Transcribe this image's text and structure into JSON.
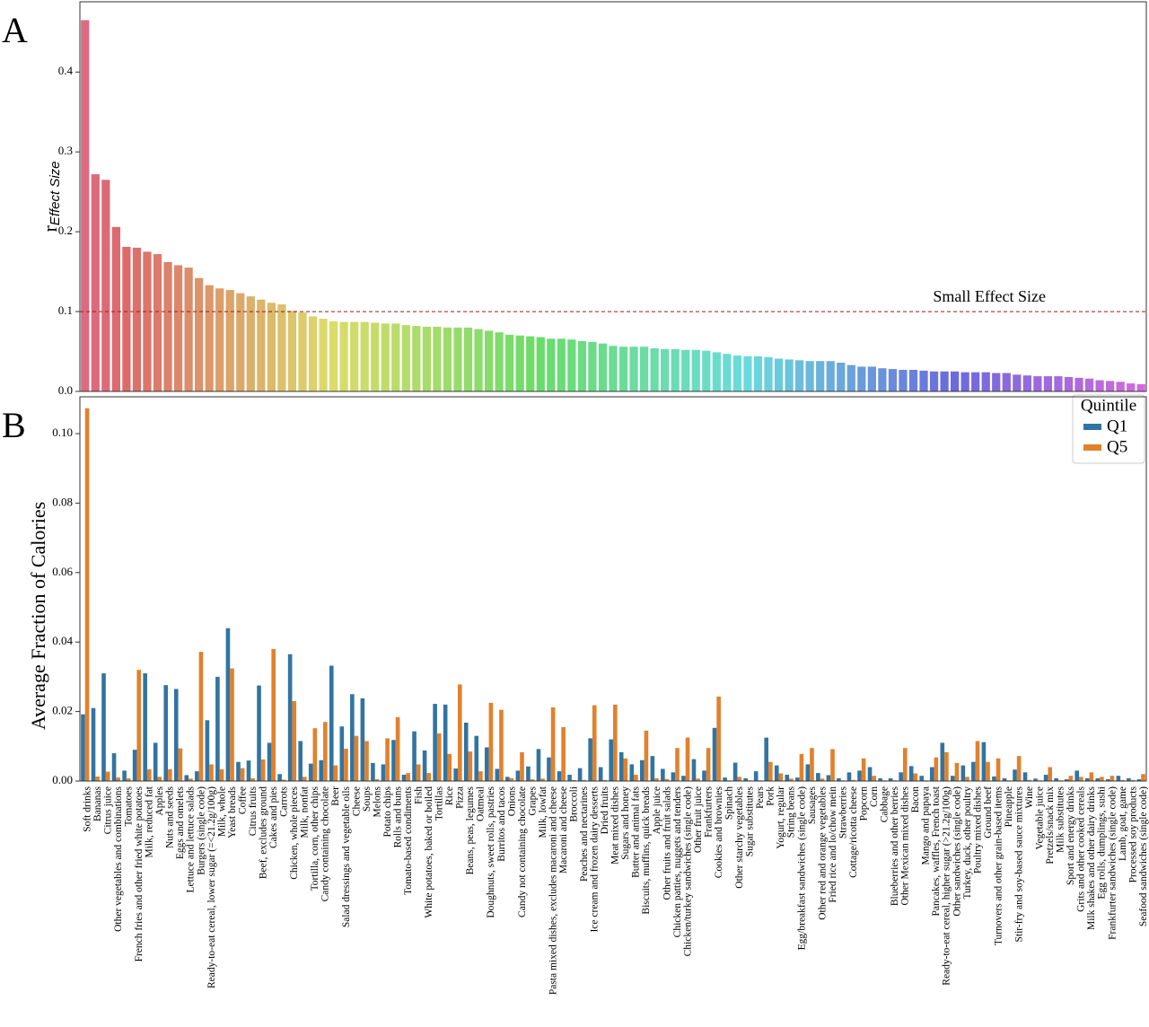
{
  "chart_data": [
    {
      "type": "bar",
      "panel": "A",
      "ylabel": "r",
      "ylabel_subscript": "Effect Size",
      "palette": "husl",
      "ylim": [
        0,
        0.488
      ],
      "yticks": [
        {
          "value": 0,
          "label": "0.0"
        },
        0.1,
        0.2,
        0.3,
        0.4
      ],
      "reference_line": {
        "value": 0.1,
        "label": "Small Effect Size",
        "color": "#a01818"
      },
      "values": [
        0.465,
        0.272,
        0.265,
        0.206,
        0.181,
        0.18,
        0.175,
        0.172,
        0.162,
        0.158,
        0.155,
        0.142,
        0.133,
        0.129,
        0.127,
        0.123,
        0.119,
        0.115,
        0.111,
        0.109,
        0.101,
        0.099,
        0.094,
        0.091,
        0.088,
        0.087,
        0.087,
        0.087,
        0.086,
        0.085,
        0.085,
        0.083,
        0.082,
        0.081,
        0.081,
        0.08,
        0.08,
        0.08,
        0.078,
        0.076,
        0.074,
        0.071,
        0.07,
        0.069,
        0.068,
        0.066,
        0.066,
        0.065,
        0.063,
        0.062,
        0.06,
        0.057,
        0.056,
        0.056,
        0.056,
        0.054,
        0.053,
        0.053,
        0.052,
        0.052,
        0.051,
        0.049,
        0.047,
        0.045,
        0.044,
        0.044,
        0.043,
        0.041,
        0.04,
        0.039,
        0.038,
        0.038,
        0.038,
        0.036,
        0.033,
        0.031,
        0.031,
        0.029,
        0.028,
        0.027,
        0.027,
        0.026,
        0.025,
        0.025,
        0.025,
        0.024,
        0.024,
        0.024,
        0.023,
        0.023,
        0.021,
        0.02,
        0.019,
        0.019,
        0.019,
        0.018,
        0.017,
        0.016,
        0.014,
        0.013,
        0.012,
        0.01,
        0.009
      ]
    },
    {
      "type": "grouped_bar",
      "panel": "B",
      "ylabel": "Average Fraction of Calories",
      "ylim": [
        0,
        0.1106
      ],
      "yticks": [
        {
          "value": 0,
          "label": "0.00"
        },
        {
          "value": 0.02,
          "label": "0.02"
        },
        {
          "value": 0.04,
          "label": "0.04"
        },
        {
          "value": 0.06,
          "label": "0.06"
        },
        {
          "value": 0.08,
          "label": "0.08"
        },
        {
          "value": 0.1,
          "label": "0.10"
        }
      ],
      "legend_title": "Quintile",
      "legend": "upper right",
      "categories": [
        "Soft drinks",
        "Bananas",
        "Citrus juice",
        "Other vegetables and combinations",
        "Tomatoes",
        "French fries and other fried white potatoes",
        "Milk, reduced fat",
        "Apples",
        "Nuts and seeds",
        "Eggs and omelets",
        "Lettuce and lettuce salads",
        "Burgers (single code)",
        "Ready-to-eat cereal, lower sugar (=<21.2g/100g)",
        "Milk, whole",
        "Yeast breads",
        "Coffee",
        "Citrus fruits",
        "Beef, excludes ground",
        "Cakes and pies",
        "Carrots",
        "Chicken, whole pieces",
        "Milk, nonfat",
        "Tortilla, corn, other chips",
        "Candy containing chocolate",
        "Beer",
        "Salad dressings and vegetable oils",
        "Cheese",
        "Soups",
        "Melons",
        "Potato chips",
        "Rolls and buns",
        "Tomato-based condiments",
        "Fish",
        "White potatoes, baked or boiled",
        "Tortillas",
        "Rice",
        "Pizza",
        "Beans, peas, legumes",
        "Oatmeal",
        "Doughnuts, sweet rolls, pastries",
        "Burritos and tacos",
        "Onions",
        "Candy not containing chocolate",
        "Grapes",
        "Milk, lowfat",
        "Pasta mixed dishes, excludes macaroni and cheese",
        "Macaroni and cheese",
        "Broccoli",
        "Peaches and nectarines",
        "Ice cream and frozen dairy desserts",
        "Dried fruits",
        "Meat mixed dishes",
        "Sugars and honey",
        "Butter and animal fats",
        "Biscuits, muffins, quick breads",
        "Apple juice",
        "Other fruits and fruit salads",
        "Chicken patties, nuggets and tenders",
        "Chicken/turkey sandwiches (single code)",
        "Other fruit juice",
        "Frankfurters",
        "Cookies and brownies",
        "Spinach",
        "Other starchy vegetables",
        "Sugar substitutes",
        "Pears",
        "Pork",
        "Yogurt, regular",
        "String beans",
        "Egg/breakfast sandwiches (single code)",
        "Sausages",
        "Other red and orange vegetables",
        "Fried rice and lo/chow mein",
        "Strawberries",
        "Cottage/ricotta cheese",
        "Popcorn",
        "Corn",
        "Cabbage",
        "Blueberries and other berries",
        "Other Mexican mixed dishes",
        "Bacon",
        "Mango and papaya",
        "Pancakes, waffles, French toast",
        "Ready-to-eat cereal, higher sugar (>21.2g/100g)",
        "Other sandwiches (single code)",
        "Turkey, duck, other poultry",
        "Poultry mixed dishes",
        "Ground beef",
        "Turnovers and other grain-based items",
        "Pineapple",
        "Stir-fry and soy-based sauce mixtures",
        "Wine",
        "Vegetable juice",
        "Pretzels/snack mix",
        "Milk substitutes",
        "Sport and energy drinks",
        "Grits and other cooked cereals",
        "Milk shakes and other dairy drinks",
        "Egg rolls, dumplings, sushi",
        "Frankfurter sandwiches (single code)",
        "Lamb, goat, game",
        "Processed soy products",
        "Seafood sandwiches (single code)"
      ],
      "series": [
        {
          "name": "Q1",
          "color": "#3274a1",
          "values": [
            0.0192,
            0.021,
            0.031,
            0.008,
            0.003,
            0.009,
            0.031,
            0.011,
            0.0276,
            0.0265,
            0.0017,
            0.0028,
            0.0175,
            0.03,
            0.044,
            0.0055,
            0.0059,
            0.0275,
            0.011,
            0.002,
            0.0365,
            0.0115,
            0.005,
            0.006,
            0.0332,
            0.0157,
            0.025,
            0.0238,
            0.0052,
            0.0048,
            0.0118,
            0.0018,
            0.0143,
            0.0088,
            0.0222,
            0.022,
            0.0036,
            0.0168,
            0.013,
            0.0097,
            0.0035,
            0.0012,
            0.003,
            0.0042,
            0.0092,
            0.0068,
            0.0028,
            0.0018,
            0.0037,
            0.0123,
            0.004,
            0.012,
            0.0083,
            0.0048,
            0.006,
            0.0072,
            0.0035,
            0.0025,
            0.0015,
            0.0063,
            0.003,
            0.0153,
            0.001,
            0.0053,
            0.0008,
            0.0028,
            0.0125,
            0.0045,
            0.0018,
            0.001,
            0.0048,
            0.0023,
            0.0017,
            0.0008,
            0.0025,
            0.003,
            0.004,
            0.0008,
            0.0008,
            0.0025,
            0.0043,
            0.0015,
            0.004,
            0.011,
            0.0015,
            0.0045,
            0.0055,
            0.0112,
            0.0013,
            0.0008,
            0.0033,
            0.0025,
            0.0007,
            0.0018,
            0.0008,
            0.0005,
            0.003,
            0.0008,
            0.0008,
            0.0005,
            0.0015,
            0.0008,
            0.0005
          ]
        },
        {
          "name": "Q5",
          "color": "#e1812c",
          "values": [
            0.1073,
            0.0013,
            0.0027,
            0.001,
            0.0008,
            0.032,
            0.0034,
            0.0012,
            0.0034,
            0.0094,
            0.0007,
            0.0372,
            0.0048,
            0.0034,
            0.0324,
            0.0037,
            0.0008,
            0.0062,
            0.038,
            0.0004,
            0.023,
            0.0012,
            0.0152,
            0.017,
            0.0045,
            0.0093,
            0.013,
            0.0115,
            0.0005,
            0.0123,
            0.0184,
            0.0023,
            0.0048,
            0.0023,
            0.0137,
            0.0078,
            0.0278,
            0.0085,
            0.0028,
            0.0225,
            0.0205,
            0.0008,
            0.0083,
            0.0005,
            0.0007,
            0.0212,
            0.0155,
            0.0003,
            0.0003,
            0.0218,
            0.0003,
            0.022,
            0.0065,
            0.0018,
            0.0145,
            0.0008,
            0.0006,
            0.0095,
            0.0125,
            0.0007,
            0.0095,
            0.0243,
            0.0002,
            0.0012,
            0.0002,
            0.0002,
            0.0055,
            0.0022,
            0.0007,
            0.0078,
            0.0095,
            0.0007,
            0.0092,
            0.0002,
            0.0003,
            0.0065,
            0.0015,
            0.0002,
            0.0002,
            0.0095,
            0.0022,
            0.0002,
            0.0068,
            0.0083,
            0.0052,
            0.0012,
            0.0115,
            0.0055,
            0.0065,
            0.0002,
            0.0072,
            0.0003,
            0.0002,
            0.004,
            0.0002,
            0.0015,
            0.0012,
            0.0025,
            0.0012,
            0.0015,
            0.0003,
            0.0003,
            0.002
          ]
        }
      ]
    }
  ]
}
